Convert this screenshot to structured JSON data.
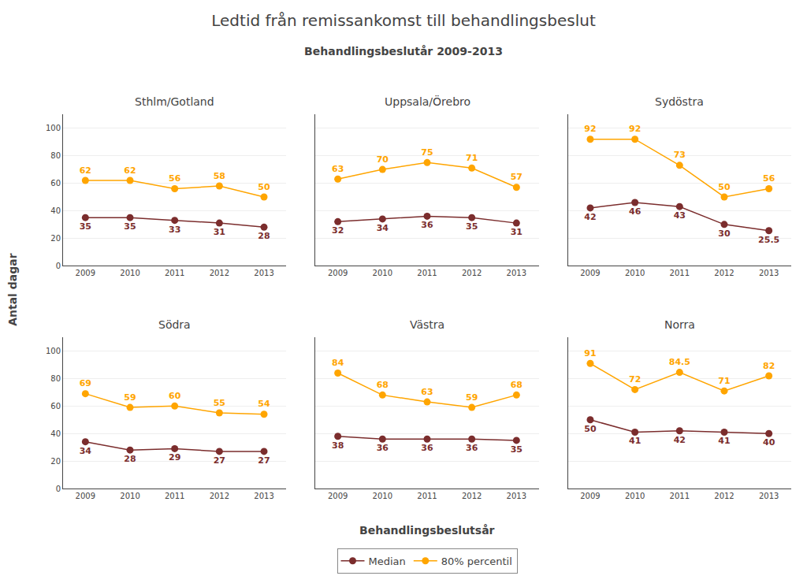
{
  "title": "Ledtid från remissankomst till behandlingsbeslut",
  "subtitle": "Behandlingsbeslutår 2009-2013",
  "xlabel": "Behandlingsbeslutsår",
  "ylabel": "Antal dagar",
  "legend": "bottom",
  "chart_data": [
    {
      "type": "line",
      "title": "Sthlm/Gotland",
      "x": [
        2009,
        2010,
        2011,
        2012,
        2013
      ],
      "xlim": [
        2008.5,
        2013.5
      ],
      "xticks": [
        2009,
        2010,
        2011,
        2012,
        2013
      ],
      "ylim": [
        0,
        110
      ],
      "yticks": [
        0,
        20,
        40,
        60,
        80,
        100
      ],
      "grid": "y",
      "data_labels": true,
      "marker": "circle",
      "series": [
        {
          "name": "Median",
          "color": "#7B2D2D",
          "values": [
            35,
            35,
            33,
            31,
            28
          ]
        },
        {
          "name": "80% percentil",
          "color": "#FFA500",
          "values": [
            62,
            62,
            56,
            58,
            50
          ]
        }
      ]
    },
    {
      "type": "line",
      "title": "Uppsala/Örebro",
      "x": [
        2009,
        2010,
        2011,
        2012,
        2013
      ],
      "xlim": [
        2008.5,
        2013.5
      ],
      "xticks": [
        2009,
        2010,
        2011,
        2012,
        2013
      ],
      "ylim": [
        0,
        110
      ],
      "yticks": [
        0,
        20,
        40,
        60,
        80,
        100
      ],
      "grid": "y",
      "data_labels": true,
      "marker": "circle",
      "tick_labels": "x",
      "series": [
        {
          "name": "Median",
          "color": "#7B2D2D",
          "values": [
            32,
            34,
            36,
            35,
            31
          ]
        },
        {
          "name": "80% percentil",
          "color": "#FFA500",
          "values": [
            63,
            70,
            75,
            71,
            57
          ]
        }
      ]
    },
    {
      "type": "line",
      "title": "Sydöstra",
      "x": [
        2009,
        2010,
        2011,
        2012,
        2013
      ],
      "xlim": [
        2008.5,
        2013.5
      ],
      "xticks": [
        2009,
        2010,
        2011,
        2012,
        2013
      ],
      "ylim": [
        0,
        110
      ],
      "yticks": [
        0,
        20,
        40,
        60,
        80,
        100
      ],
      "grid": "y",
      "data_labels": true,
      "marker": "circle",
      "tick_labels": "x",
      "series": [
        {
          "name": "Median",
          "color": "#7B2D2D",
          "values": [
            42,
            46,
            43,
            30,
            25.5
          ]
        },
        {
          "name": "80% percentil",
          "color": "#FFA500",
          "values": [
            92,
            92,
            73,
            50,
            56
          ]
        }
      ]
    },
    {
      "type": "line",
      "title": "Södra",
      "x": [
        2009,
        2010,
        2011,
        2012,
        2013
      ],
      "xlim": [
        2008.5,
        2013.5
      ],
      "xticks": [
        2009,
        2010,
        2011,
        2012,
        2013
      ],
      "ylim": [
        0,
        110
      ],
      "yticks": [
        0,
        20,
        40,
        60,
        80,
        100
      ],
      "grid": "y",
      "data_labels": true,
      "marker": "circle",
      "series": [
        {
          "name": "Median",
          "color": "#7B2D2D",
          "values": [
            34,
            28,
            29,
            27,
            27
          ]
        },
        {
          "name": "80% percentil",
          "color": "#FFA500",
          "values": [
            69,
            59,
            60,
            55,
            54
          ]
        }
      ]
    },
    {
      "type": "line",
      "title": "Västra",
      "x": [
        2009,
        2010,
        2011,
        2012,
        2013
      ],
      "xlim": [
        2008.5,
        2013.5
      ],
      "xticks": [
        2009,
        2010,
        2011,
        2012,
        2013
      ],
      "ylim": [
        0,
        110
      ],
      "yticks": [
        0,
        20,
        40,
        60,
        80,
        100
      ],
      "grid": "y",
      "data_labels": true,
      "marker": "circle",
      "tick_labels": "x",
      "series": [
        {
          "name": "Median",
          "color": "#7B2D2D",
          "values": [
            38,
            36,
            36,
            36,
            35
          ]
        },
        {
          "name": "80% percentil",
          "color": "#FFA500",
          "values": [
            84,
            68,
            63,
            59,
            68
          ]
        }
      ]
    },
    {
      "type": "line",
      "title": "Norra",
      "x": [
        2009,
        2010,
        2011,
        2012,
        2013
      ],
      "xlim": [
        2008.5,
        2013.5
      ],
      "xticks": [
        2009,
        2010,
        2011,
        2012,
        2013
      ],
      "ylim": [
        0,
        110
      ],
      "yticks": [
        0,
        20,
        40,
        60,
        80,
        100
      ],
      "grid": "y",
      "data_labels": true,
      "marker": "circle",
      "tick_labels": "x",
      "series": [
        {
          "name": "Median",
          "color": "#7B2D2D",
          "values": [
            50,
            41,
            42,
            41,
            40
          ]
        },
        {
          "name": "80% percentil",
          "color": "#FFA500",
          "values": [
            91,
            72,
            84.5,
            71,
            82
          ]
        }
      ]
    }
  ]
}
